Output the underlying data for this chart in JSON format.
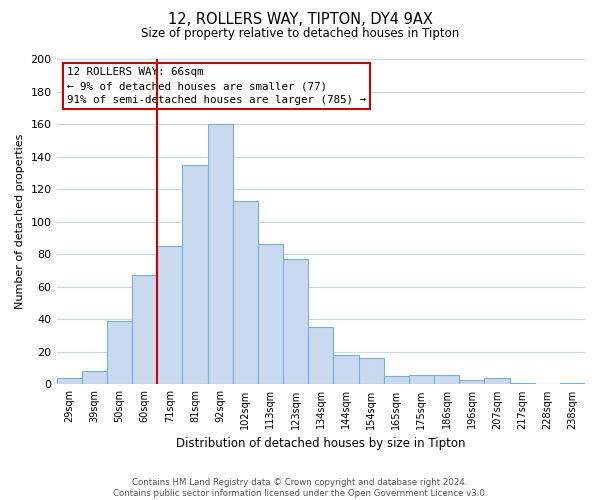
{
  "title": "12, ROLLERS WAY, TIPTON, DY4 9AX",
  "subtitle": "Size of property relative to detached houses in Tipton",
  "xlabel": "Distribution of detached houses by size in Tipton",
  "ylabel": "Number of detached properties",
  "bar_labels": [
    "29sqm",
    "39sqm",
    "50sqm",
    "60sqm",
    "71sqm",
    "81sqm",
    "92sqm",
    "102sqm",
    "113sqm",
    "123sqm",
    "134sqm",
    "144sqm",
    "154sqm",
    "165sqm",
    "175sqm",
    "186sqm",
    "196sqm",
    "207sqm",
    "217sqm",
    "228sqm",
    "238sqm"
  ],
  "bar_values": [
    4,
    8,
    39,
    67,
    85,
    135,
    160,
    113,
    86,
    77,
    35,
    18,
    16,
    5,
    6,
    6,
    3,
    4,
    1,
    0,
    1
  ],
  "bar_color": "#c9d9f0",
  "bar_edge_color": "#7aafd4",
  "vline_color": "#cc0000",
  "ylim": [
    0,
    200
  ],
  "yticks": [
    0,
    20,
    40,
    60,
    80,
    100,
    120,
    140,
    160,
    180,
    200
  ],
  "annotation_title": "12 ROLLERS WAY: 66sqm",
  "annotation_line1": "← 9% of detached houses are smaller (77)",
  "annotation_line2": "91% of semi-detached houses are larger (785) →",
  "annotation_box_edge": "#cc0000",
  "footer1": "Contains HM Land Registry data © Crown copyright and database right 2024.",
  "footer2": "Contains public sector information licensed under the Open Government Licence v3.0.",
  "bg_color": "#ffffff",
  "grid_color": "#c8d8e8"
}
